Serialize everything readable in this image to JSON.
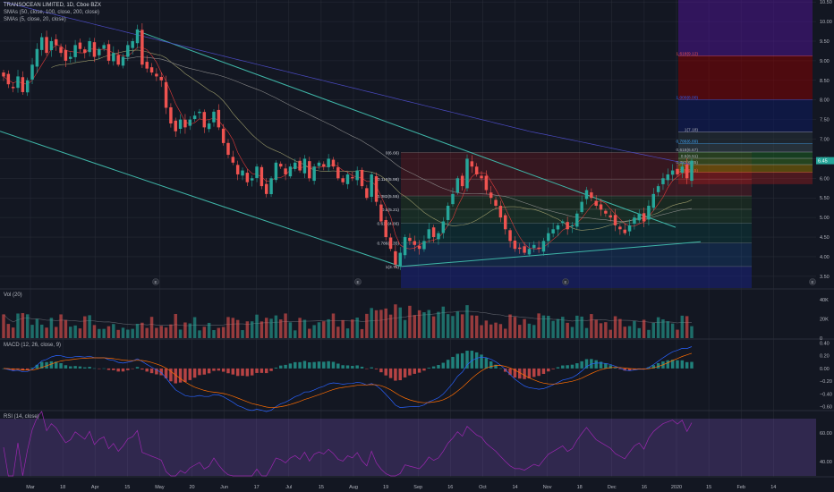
{
  "chart_data": {
    "type": "candlestick",
    "main": {
      "title": "TRANSOCEAN LIMITED, 1D, Cboe BZX",
      "indicators": [
        "SMAs (50, close, 100, close, 200, close)",
        "SMAs (5, close, 20, close)"
      ],
      "yticks": [
        "10.50",
        "10.00",
        "9.50",
        "9.00",
        "8.50",
        "8.00",
        "7.50",
        "7.00",
        "6.50",
        "6.00",
        "5.50",
        "5.00",
        "4.50",
        "4.00",
        "3.50"
      ],
      "ylim": [
        3.2,
        10.55
      ],
      "last_price": "6.45",
      "closes": [
        8.6,
        8.4,
        8.3,
        8.6,
        8.2,
        8.5,
        8.9,
        9.3,
        9.6,
        9.2,
        9.5,
        9.4,
        9.2,
        9.0,
        9.1,
        9.4,
        9.3,
        9.2,
        9.5,
        9.1,
        9.3,
        9.4,
        9.0,
        9.2,
        8.9,
        9.1,
        9.4,
        9.5,
        9.8,
        8.9,
        8.8,
        8.7,
        8.6,
        8.5,
        7.8,
        7.4,
        7.2,
        7.5,
        7.3,
        7.5,
        7.6,
        7.7,
        7.3,
        7.4,
        7.7,
        7.3,
        6.9,
        6.6,
        6.4,
        6.1,
        6.2,
        5.9,
        6.0,
        6.3,
        5.8,
        5.6,
        6.0,
        6.4,
        6.3,
        6.1,
        6.3,
        6.4,
        6.2,
        6.5,
        6.0,
        6.3,
        6.4,
        6.3,
        6.5,
        6.3,
        6.0,
        5.9,
        6.1,
        6.0,
        6.2,
        5.8,
        5.5,
        6.1,
        5.4,
        4.9,
        4.5,
        4.2,
        3.8,
        4.1,
        4.5,
        4.4,
        4.3,
        4.2,
        4.4,
        4.7,
        4.5,
        4.6,
        4.9,
        5.3,
        5.6,
        6.0,
        5.8,
        6.5,
        6.3,
        6.1,
        6.0,
        5.7,
        5.5,
        5.3,
        5.0,
        4.7,
        4.4,
        4.2,
        4.2,
        4.1,
        4.2,
        4.3,
        4.2,
        4.4,
        4.6,
        4.7,
        4.8,
        4.9,
        4.7,
        4.8,
        5.1,
        5.4,
        5.7,
        5.5,
        5.3,
        5.2,
        5.1,
        5.0,
        4.8,
        4.7,
        4.6,
        4.8,
        5.0,
        5.1,
        4.9,
        5.3,
        5.6,
        5.8,
        6.0,
        6.1,
        6.2,
        6.1,
        6.3,
        6.0,
        6.45
      ],
      "x_labels": [
        "Mar",
        "18",
        "Apr",
        "15",
        "May",
        "20",
        "Jun",
        "17",
        "Jul",
        "15",
        "Aug",
        "19",
        "Sep",
        "16",
        "Oct",
        "14",
        "Nov",
        "18",
        "Dec",
        "16",
        "2020",
        "15",
        "Feb",
        "14"
      ],
      "event_markers": [
        "E",
        "E",
        "E",
        "E"
      ],
      "fib_retracement": {
        "levels": [
          {
            "label": "0(6.66)",
            "value": 6.66
          },
          {
            "label": "0.118(5.98)",
            "value": 5.98
          },
          {
            "label": "0.382(5.55)",
            "value": 5.55
          },
          {
            "label": "0.5(5.21)",
            "value": 5.21
          },
          {
            "label": "0.618(4.86)",
            "value": 4.86
          },
          {
            "label": "0.786(4.35)",
            "value": 4.35
          },
          {
            "label": "1(3.75)",
            "value": 3.75
          }
        ]
      },
      "fib_extension": {
        "levels": [
          {
            "label": "1.618(9.12)",
            "value": 9.12
          },
          {
            "label": "1.000(8.00)",
            "value": 8.0
          },
          {
            "label": "1(7.18)",
            "value": 7.18
          },
          {
            "label": "0.786(6.89)",
            "value": 6.89
          },
          {
            "label": "0.618(6.67)",
            "value": 6.67
          },
          {
            "label": "0.5(6.51)",
            "value": 6.51
          },
          {
            "label": "0.382(6.35)",
            "value": 6.35
          },
          {
            "label": "0.236(6.15)",
            "value": 6.15
          }
        ]
      }
    },
    "volume": {
      "title": "Vol (20)",
      "yticks": [
        "40K",
        "20K",
        "0"
      ],
      "ylim": [
        0,
        50
      ]
    },
    "macd": {
      "title": "MACD (12, 26, close, 9)",
      "yticks": [
        "0.40",
        "0.20",
        "0.00",
        "−0.20",
        "−0.40",
        "−0.60"
      ],
      "ylim": [
        -0.65,
        0.45
      ]
    },
    "rsi": {
      "title": "RSI (14, close)",
      "yticks": [
        "60.00",
        "40.00"
      ],
      "ylim": [
        30,
        75
      ]
    }
  },
  "colors": {
    "background": "#131722",
    "up": "#26a69a",
    "down": "#ef5350",
    "grid": "#2a2e39",
    "teal_line": "#3fb6a8",
    "sma_red": "#e03a3a",
    "sma_olive": "#9a9a6a",
    "sma_blue": "#4a4ac0",
    "sma_gray": "#8a8a8a",
    "macd_line": "#2962ff",
    "signal_line": "#ff6d00",
    "rsi_line": "#9c27b0",
    "fib_band": "#7e57c2"
  }
}
